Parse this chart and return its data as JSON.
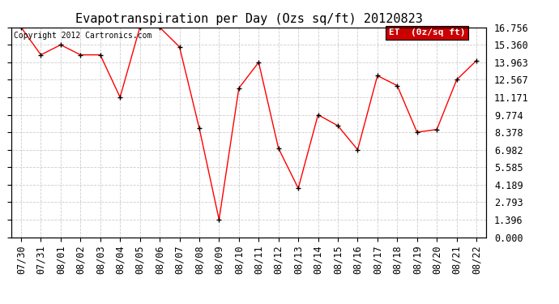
{
  "title": "Evapotranspiration per Day (Ozs sq/ft) 20120823",
  "copyright_text": "Copyright 2012 Cartronics.com",
  "legend_label": "ET  (0z/sq ft)",
  "x_labels": [
    "07/30",
    "07/31",
    "08/01",
    "08/02",
    "08/03",
    "08/04",
    "08/05",
    "08/06",
    "08/07",
    "08/08",
    "08/09",
    "08/10",
    "08/11",
    "08/12",
    "08/13",
    "08/14",
    "08/15",
    "08/16",
    "08/17",
    "08/18",
    "08/19",
    "08/20",
    "08/21",
    "08/22"
  ],
  "y_values": [
    16.756,
    14.56,
    15.36,
    14.56,
    14.56,
    11.171,
    16.756,
    16.756,
    15.2,
    8.7,
    1.396,
    11.9,
    13.963,
    7.1,
    3.9,
    9.774,
    8.9,
    6.982,
    12.9,
    12.1,
    8.378,
    8.6,
    12.567,
    14.1
  ],
  "y_ticks": [
    0.0,
    1.396,
    2.793,
    4.189,
    5.585,
    6.982,
    8.378,
    9.774,
    11.171,
    12.567,
    13.963,
    15.36,
    16.756
  ],
  "ylim": [
    0.0,
    16.756
  ],
  "line_color": "red",
  "marker_color": "black",
  "bg_color": "white",
  "grid_color": "#cccccc",
  "legend_bg": "#cc0000",
  "legend_text_color": "white",
  "title_fontsize": 11,
  "tick_fontsize": 8.5,
  "copyright_fontsize": 7
}
